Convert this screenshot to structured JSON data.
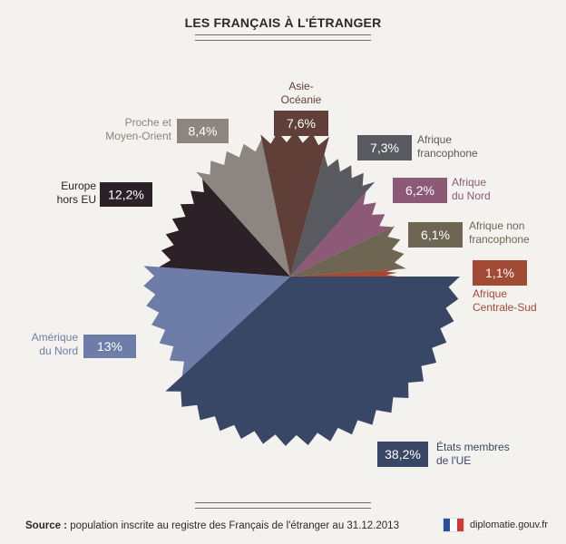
{
  "title": "LES FRANÇAIS À L'ÉTRANGER",
  "source_label": "Source :",
  "source_text": " population inscrite au registre des Français de l'étranger au 31.12.2013",
  "brand": "diplomatie.gouv.fr",
  "chart_data": {
    "type": "pie",
    "title": "LES FRANÇAIS À L'ÉTRANGER",
    "series": [
      {
        "name": "États membres de l'UE",
        "label_lines": [
          "États membres",
          "de l'UE"
        ],
        "value": 38.2,
        "display": "38,2%",
        "color": "#394766"
      },
      {
        "name": "Amérique du Nord",
        "label_lines": [
          "Amérique",
          "du Nord"
        ],
        "value": 13,
        "display": "13%",
        "color": "#6d7da8"
      },
      {
        "name": "Europe hors EU",
        "label_lines": [
          "Europe",
          "hors EU"
        ],
        "value": 12.2,
        "display": "12,2%",
        "color": "#2b2127"
      },
      {
        "name": "Proche et Moyen-Orient",
        "label_lines": [
          "Proche et",
          "Moyen-Orient"
        ],
        "value": 8.4,
        "display": "8,4%",
        "color": "#8c8580"
      },
      {
        "name": "Asie-Océanie",
        "label_lines": [
          "Asie-",
          "Océanie"
        ],
        "value": 7.6,
        "display": "7,6%",
        "color": "#5f3f37"
      },
      {
        "name": "Afrique francophone",
        "label_lines": [
          "Afrique",
          "francophone"
        ],
        "value": 7.3,
        "display": "7,3%",
        "color": "#595960"
      },
      {
        "name": "Afrique du Nord",
        "label_lines": [
          "Afrique",
          "du Nord"
        ],
        "value": 6.2,
        "display": "6,2%",
        "color": "#8c5a76"
      },
      {
        "name": "Afrique non francophone",
        "label_lines": [
          "Afrique non",
          "francophone"
        ],
        "value": 6.1,
        "display": "6,1%",
        "color": "#6f6553"
      },
      {
        "name": "Afrique Centrale-Sud",
        "label_lines": [
          "Afrique",
          "Centrale-Sud"
        ],
        "value": 1.1,
        "display": "1,1%",
        "color": "#a34a35"
      }
    ]
  }
}
